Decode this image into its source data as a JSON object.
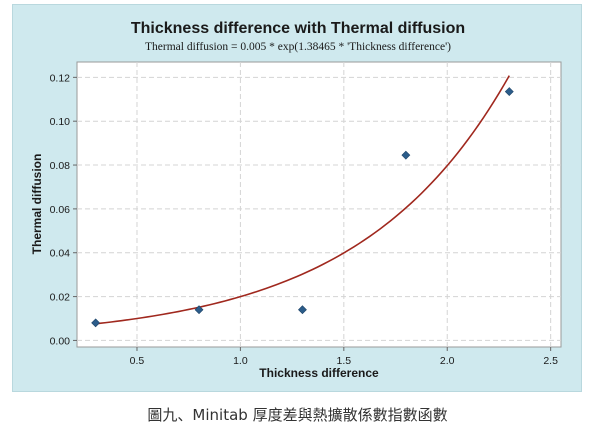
{
  "caption": "圖九、Minitab 厚度差與熱擴散係數指數函數",
  "chart_data": {
    "type": "scatter",
    "title": "Thickness difference with Thermal diffusion",
    "subtitle": "Thermal diffusion = 0.005 * exp(1.38465 * 'Thickness difference')",
    "xlabel": "Thickness difference",
    "ylabel": "Thermal diffusion",
    "xlim": [
      0.21,
      2.55
    ],
    "ylim": [
      -0.003,
      0.127
    ],
    "xticks": [
      0.5,
      1.0,
      1.5,
      2.0,
      2.5
    ],
    "xtick_labels": [
      "0.5",
      "1.0",
      "1.5",
      "2.0",
      "2.5"
    ],
    "yticks": [
      0.0,
      0.02,
      0.04,
      0.06,
      0.08,
      0.1,
      0.12
    ],
    "ytick_labels": [
      "0.00",
      "0.02",
      "0.04",
      "0.06",
      "0.08",
      "0.10",
      "0.12"
    ],
    "grid": true,
    "points": [
      {
        "x": 0.3,
        "y": 0.008
      },
      {
        "x": 0.8,
        "y": 0.014
      },
      {
        "x": 1.3,
        "y": 0.014
      },
      {
        "x": 1.8,
        "y": 0.0845
      },
      {
        "x": 2.3,
        "y": 0.1135
      }
    ],
    "fit": {
      "model": "exponential",
      "a": 0.005,
      "b": 1.38465,
      "x_range": [
        0.3,
        2.3
      ]
    },
    "colors": {
      "panel_bg": "#cfe9ee",
      "plot_bg": "#ffffff",
      "grid": "#d4d4d4",
      "marker": "#2b5c8a",
      "fit_line": "#a0281e"
    }
  }
}
